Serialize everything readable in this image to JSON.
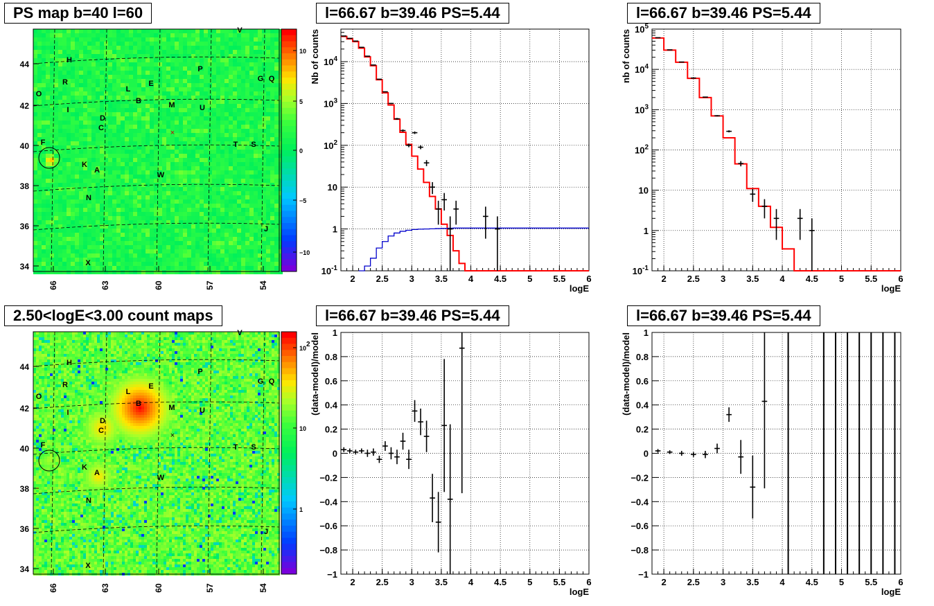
{
  "titles": {
    "map_ps": "PS map b=40 l=60",
    "map_counts": "2.50<logE<3.00 count maps",
    "spec1": "l=66.67 b=39.46 PS=5.44",
    "spec2": "l=66.67 b=39.46 PS=5.44",
    "res1": "l=66.67 b=39.46 PS=5.44",
    "res2": "l=66.67 b=39.46 PS=5.44"
  },
  "chart_data": [
    {
      "id": "map_ps",
      "type": "heatmap",
      "title": "PS map b=40 l=60",
      "x_ticks": [
        "66",
        "63",
        "60",
        "57",
        "54"
      ],
      "y_ticks": [
        "34",
        "36",
        "38",
        "40",
        "42",
        "44"
      ],
      "colorbar_ticks": [
        "10",
        "5",
        "0",
        "−5",
        "−10"
      ],
      "colorbar_range": [
        -12,
        12
      ],
      "sources": [
        "V",
        "H",
        "P",
        "R",
        "G",
        "Q",
        "O",
        "L",
        "E",
        "B",
        "M",
        "U",
        "I",
        "D",
        "C",
        "F",
        "T",
        "S",
        "K",
        "A",
        "W",
        "N",
        "J",
        "X"
      ]
    },
    {
      "id": "spec1",
      "type": "line",
      "title": "l=66.67 b=39.46 PS=5.44",
      "xlabel": "logE",
      "ylabel": "Nb of counts",
      "xlim": [
        1.8,
        6
      ],
      "ylim": [
        0.1,
        60000
      ],
      "log_y": true,
      "grid": true,
      "x_ticks": [
        "2",
        "2.5",
        "3",
        "3.5",
        "4",
        "4.5",
        "5",
        "5.5",
        "6"
      ],
      "y_ticks": [
        "10⁻¹",
        "1",
        "10",
        "10²",
        "10³",
        "10⁴"
      ],
      "series": [
        {
          "role": "model",
          "color": "#ff0000",
          "step": 0.1,
          "x_left": [
            1.8,
            1.9,
            2.0,
            2.1,
            2.2,
            2.3,
            2.4,
            2.5,
            2.6,
            2.7,
            2.8,
            2.9,
            3.0,
            3.1,
            3.2,
            3.3,
            3.4,
            3.5,
            3.6,
            3.7,
            3.8,
            3.9,
            4.0
          ],
          "values": [
            40000,
            35000,
            30000,
            21000,
            13000,
            8000,
            3700,
            1800,
            920,
            420,
            205,
            105,
            55,
            27,
            13,
            6,
            3,
            1.3,
            0.7,
            0.3,
            0.15,
            0.1,
            0.1
          ]
        },
        {
          "role": "psf",
          "color": "#0000cc",
          "step": 0.1,
          "x_left": [
            2.1,
            2.2,
            2.3,
            2.4,
            2.5,
            2.6,
            2.7,
            2.8,
            2.9,
            3.0,
            3.1,
            3.2,
            3.3,
            3.4,
            3.5,
            3.6,
            3.7
          ],
          "values": [
            0.1,
            0.13,
            0.2,
            0.35,
            0.5,
            0.68,
            0.8,
            0.88,
            0.93,
            0.97,
            0.99,
            1.0,
            1.01,
            1.02,
            1.03,
            1.04,
            1.05
          ]
        },
        {
          "role": "data",
          "color": "#000000",
          "x": [
            1.85,
            1.95,
            2.05,
            2.15,
            2.25,
            2.35,
            2.45,
            2.55,
            2.65,
            2.75,
            2.85,
            2.95,
            3.05,
            3.15,
            3.25,
            3.35,
            3.45,
            3.55,
            3.65,
            3.75,
            4.25,
            4.45
          ],
          "values": [
            41000,
            36000,
            31000,
            22000,
            13500,
            8300,
            3800,
            1900,
            1000,
            430,
            225,
            100,
            200,
            90,
            38,
            10,
            3,
            5,
            1,
            3,
            2,
            1
          ]
        }
      ]
    },
    {
      "id": "spec2",
      "type": "line",
      "title": "l=66.67 b=39.46 PS=5.44",
      "xlabel": "logE",
      "ylabel": "nb of counts",
      "xlim": [
        1.8,
        6
      ],
      "ylim": [
        0.1,
        100000
      ],
      "log_y": true,
      "grid": true,
      "x_ticks": [
        "2",
        "2.5",
        "3",
        "3.5",
        "4",
        "4.5",
        "5",
        "5.5",
        "6"
      ],
      "y_ticks": [
        "10⁻¹",
        "1",
        "10",
        "10²",
        "10³",
        "10⁴",
        "10⁵"
      ],
      "series": [
        {
          "role": "model",
          "color": "#ff0000",
          "step": 0.2,
          "x_left": [
            1.8,
            2.0,
            2.2,
            2.4,
            2.6,
            2.8,
            3.0,
            3.2,
            3.4,
            3.6,
            3.8,
            4.0,
            4.2
          ],
          "values": [
            60000,
            30000,
            15000,
            6000,
            2000,
            700,
            200,
            45,
            11,
            4,
            1.2,
            0.35,
            0.1
          ]
        },
        {
          "role": "data",
          "color": "#000000",
          "x": [
            1.9,
            2.1,
            2.3,
            2.5,
            2.7,
            2.9,
            3.1,
            3.3,
            3.5,
            3.7,
            3.9,
            4.3,
            4.5
          ],
          "values": [
            61000,
            30500,
            15200,
            6100,
            2050,
            705,
            290,
            46,
            8,
            4,
            2,
            2,
            1
          ]
        }
      ]
    },
    {
      "id": "map_counts",
      "type": "heatmap",
      "title": "2.50<logE<3.00 count maps",
      "x_ticks": [
        "66",
        "63",
        "60",
        "57",
        "54"
      ],
      "y_ticks": [
        "34",
        "36",
        "38",
        "40",
        "42",
        "44"
      ],
      "colorbar_ticks": [
        "10²",
        "10",
        "1"
      ],
      "sources": [
        "V",
        "H",
        "P",
        "R",
        "G",
        "Q",
        "O",
        "L",
        "E",
        "B",
        "M",
        "U",
        "I",
        "D",
        "C",
        "F",
        "T",
        "S",
        "K",
        "A",
        "W",
        "N",
        "J",
        "X"
      ]
    },
    {
      "id": "res1",
      "type": "scatter",
      "title": "l=66.67 b=39.46 PS=5.44",
      "xlabel": "logE",
      "ylabel": "(data-model)/model",
      "xlim": [
        1.8,
        6
      ],
      "ylim": [
        -1,
        1
      ],
      "grid": true,
      "x_ticks": [
        "2",
        "2.5",
        "3",
        "3.5",
        "4",
        "4.5",
        "5",
        "5.5",
        "6"
      ],
      "y_ticks": [
        "−1",
        "−0.8",
        "−0.6",
        "−0.4",
        "−0.2",
        "0",
        "0.2",
        "0.4",
        "0.6",
        "0.8",
        "1"
      ],
      "series": [
        {
          "role": "residuals",
          "color": "#000000",
          "x": [
            1.85,
            1.95,
            2.05,
            2.15,
            2.25,
            2.35,
            2.45,
            2.55,
            2.65,
            2.75,
            2.85,
            2.95,
            3.05,
            3.15,
            3.25,
            3.35,
            3.45,
            3.55,
            3.65,
            3.85
          ],
          "values": [
            0.03,
            0.02,
            0.01,
            0.02,
            0.0,
            0.01,
            -0.05,
            0.06,
            0.0,
            -0.03,
            0.1,
            -0.05,
            0.35,
            0.26,
            0.14,
            -0.37,
            -0.57,
            0.23,
            -0.38,
            0.87
          ],
          "errors": [
            0.02,
            0.02,
            0.02,
            0.02,
            0.03,
            0.03,
            0.03,
            0.04,
            0.05,
            0.06,
            0.07,
            0.08,
            0.09,
            0.11,
            0.13,
            0.2,
            0.25,
            0.55,
            0.62,
            1.2
          ]
        }
      ]
    },
    {
      "id": "res2",
      "type": "scatter",
      "title": "l=66.67 b=39.46 PS=5.44",
      "xlabel": "logE",
      "ylabel": "(data-model)/model",
      "xlim": [
        1.8,
        6
      ],
      "ylim": [
        -1,
        1
      ],
      "grid": true,
      "x_ticks": [
        "2",
        "2.5",
        "3",
        "3.5",
        "4",
        "4.5",
        "5",
        "5.5",
        "6"
      ],
      "y_ticks": [
        "−1",
        "−0.8",
        "−0.6",
        "−0.4",
        "−0.2",
        "0",
        "0.2",
        "0.4",
        "0.6",
        "0.8",
        "1"
      ],
      "series": [
        {
          "role": "residuals",
          "color": "#000000",
          "x": [
            1.9,
            2.1,
            2.3,
            2.5,
            2.7,
            2.9,
            3.1,
            3.3,
            3.5,
            3.7
          ],
          "values": [
            0.02,
            0.01,
            0.0,
            -0.01,
            -0.01,
            0.04,
            0.32,
            -0.03,
            -0.28,
            0.43
          ],
          "errors": [
            0.015,
            0.015,
            0.02,
            0.02,
            0.03,
            0.04,
            0.06,
            0.14,
            0.26,
            0.72
          ]
        },
        {
          "role": "empty-bins",
          "color": "#000000",
          "x": [
            4.1,
            4.7,
            4.9,
            5.1,
            5.3,
            5.5,
            5.7,
            5.9
          ]
        }
      ]
    }
  ]
}
